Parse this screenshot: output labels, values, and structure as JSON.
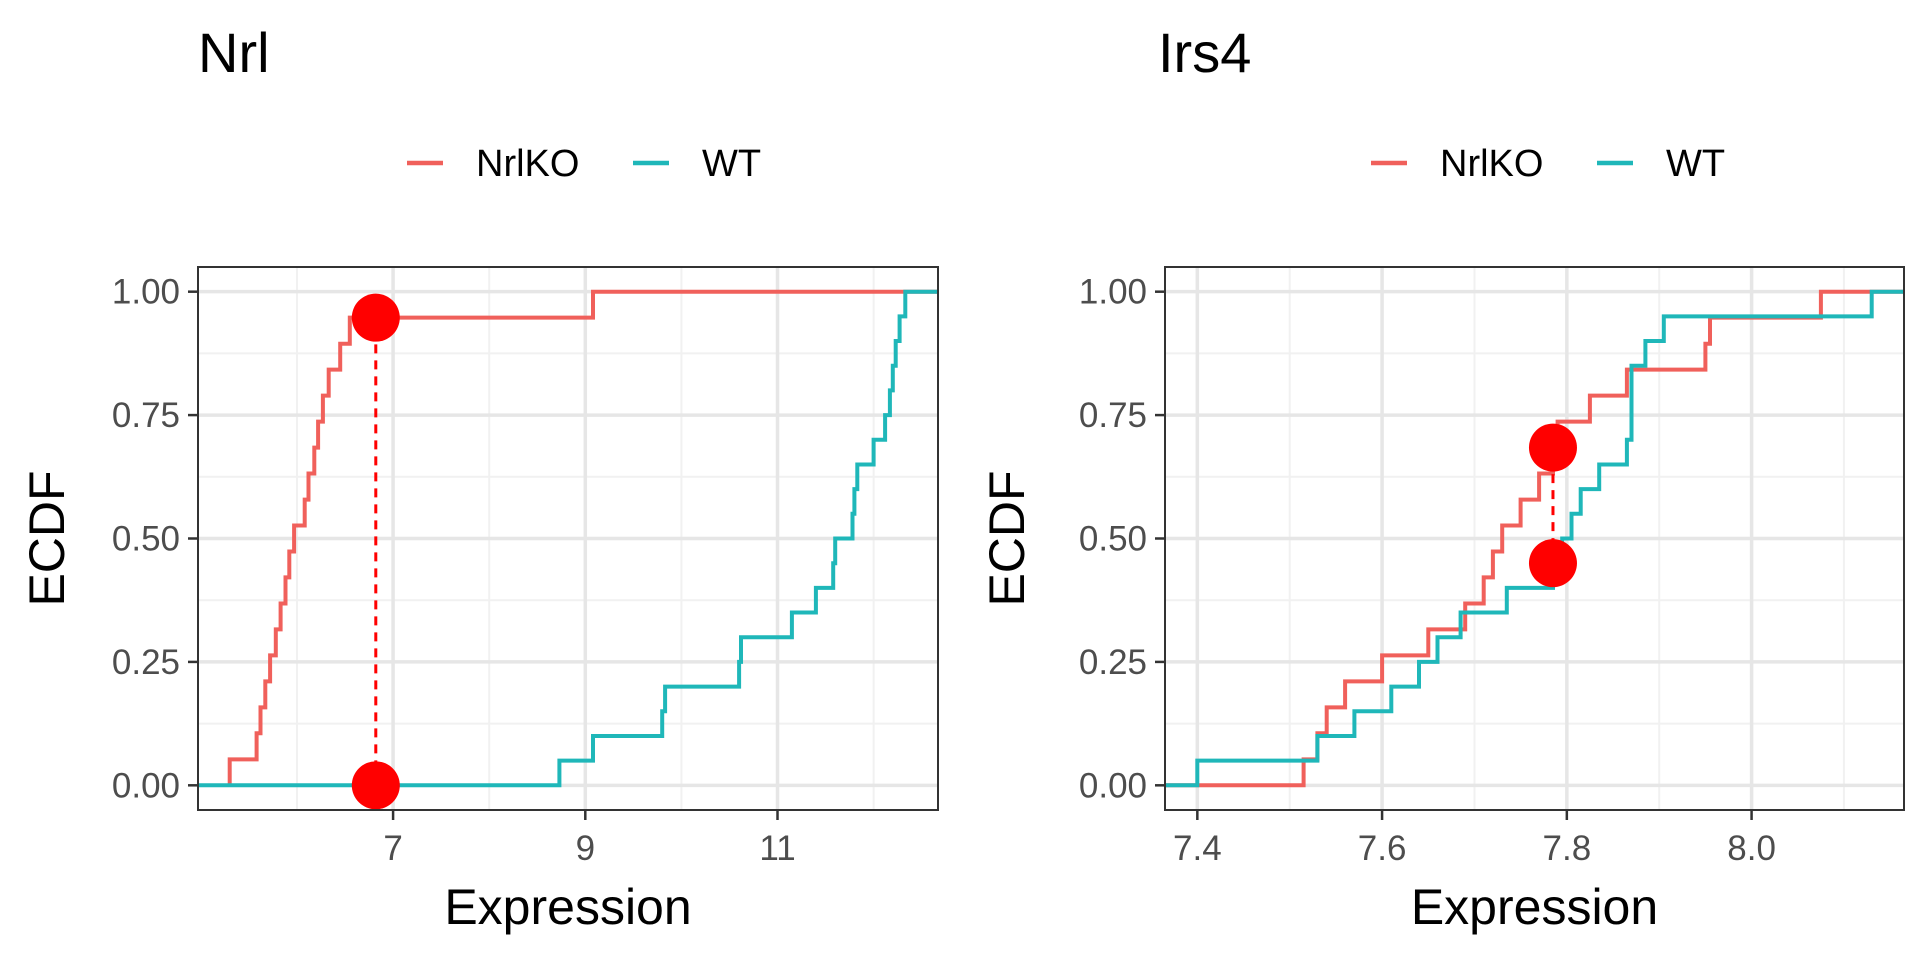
{
  "colors": {
    "NrlKO": "#F0605B",
    "WT": "#1FB7B9",
    "marker": "#FF0000",
    "grid_major": "#E6E6E6",
    "grid_minor": "#F1F1F1",
    "panel_border": "#333333",
    "axis_text": "#4D4D4D"
  },
  "chart_data": [
    {
      "type": "line",
      "subtype": "ecdf-step",
      "title": "Nrl",
      "xlabel": "Expression",
      "ylabel": "ECDF",
      "legend_position": "top",
      "grid": true,
      "xlim": [
        4.97,
        12.67
      ],
      "ylim": [
        -0.05,
        1.05
      ],
      "x_ticks": [
        7,
        9,
        11
      ],
      "x_minor_ticks": [
        6,
        8,
        10,
        12
      ],
      "y_ticks": [
        0,
        0.25,
        0.5,
        0.75,
        1
      ],
      "y_tick_labels": [
        "0.00",
        "0.25",
        "0.50",
        "0.75",
        "1.00"
      ],
      "series": [
        {
          "name": "NrlKO",
          "points": [
            [
              5.3,
              0
            ],
            [
              5.3,
              0.0526
            ],
            [
              5.58,
              0.1053
            ],
            [
              5.62,
              0.1579
            ],
            [
              5.67,
              0.2105
            ],
            [
              5.72,
              0.2632
            ],
            [
              5.78,
              0.3158
            ],
            [
              5.83,
              0.3684
            ],
            [
              5.88,
              0.4211
            ],
            [
              5.92,
              0.4737
            ],
            [
              5.97,
              0.5263
            ],
            [
              6.08,
              0.5789
            ],
            [
              6.12,
              0.6316
            ],
            [
              6.18,
              0.6842
            ],
            [
              6.22,
              0.7368
            ],
            [
              6.27,
              0.7895
            ],
            [
              6.33,
              0.8421
            ],
            [
              6.45,
              0.8947
            ],
            [
              6.55,
              0.9474
            ],
            [
              9.08,
              1.0
            ],
            [
              12.67,
              1.0
            ]
          ]
        },
        {
          "name": "WT",
          "points": [
            [
              4.97,
              0
            ],
            [
              8.73,
              0.05
            ],
            [
              9.08,
              0.1
            ],
            [
              9.8,
              0.15
            ],
            [
              9.83,
              0.2
            ],
            [
              10.6,
              0.25
            ],
            [
              10.62,
              0.3
            ],
            [
              11.15,
              0.35
            ],
            [
              11.4,
              0.4
            ],
            [
              11.58,
              0.45
            ],
            [
              11.6,
              0.5
            ],
            [
              11.78,
              0.55
            ],
            [
              11.8,
              0.6
            ],
            [
              11.83,
              0.65
            ],
            [
              12.0,
              0.7
            ],
            [
              12.12,
              0.75
            ],
            [
              12.17,
              0.8
            ],
            [
              12.2,
              0.85
            ],
            [
              12.23,
              0.9
            ],
            [
              12.27,
              0.95
            ],
            [
              12.33,
              1.0
            ],
            [
              12.67,
              1.0
            ]
          ]
        }
      ],
      "ks_segment": {
        "x": 6.82,
        "y_low": 0.0,
        "y_high": 0.9474
      }
    },
    {
      "type": "line",
      "subtype": "ecdf-step",
      "title": "Irs4",
      "xlabel": "Expression",
      "ylabel": "ECDF",
      "legend_position": "top",
      "grid": true,
      "xlim": [
        7.365,
        8.165
      ],
      "ylim": [
        -0.05,
        1.05
      ],
      "x_ticks": [
        7.4,
        7.6,
        7.8,
        8.0
      ],
      "x_tick_labels": [
        "7.4",
        "7.6",
        "7.8",
        "8.0"
      ],
      "x_minor_ticks": [
        7.5,
        7.7,
        7.9,
        8.1
      ],
      "y_ticks": [
        0,
        0.25,
        0.5,
        0.75,
        1
      ],
      "y_tick_labels": [
        "0.00",
        "0.25",
        "0.50",
        "0.75",
        "1.00"
      ],
      "series": [
        {
          "name": "NrlKO",
          "points": [
            [
              7.365,
              0
            ],
            [
              7.515,
              0.0526
            ],
            [
              7.53,
              0.1053
            ],
            [
              7.54,
              0.1579
            ],
            [
              7.56,
              0.2105
            ],
            [
              7.6,
              0.2632
            ],
            [
              7.65,
              0.3158
            ],
            [
              7.69,
              0.3684
            ],
            [
              7.71,
              0.4211
            ],
            [
              7.72,
              0.4737
            ],
            [
              7.73,
              0.5263
            ],
            [
              7.75,
              0.5789
            ],
            [
              7.77,
              0.6316
            ],
            [
              7.785,
              0.6842
            ],
            [
              7.79,
              0.7368
            ],
            [
              7.825,
              0.7895
            ],
            [
              7.865,
              0.8421
            ],
            [
              7.95,
              0.8947
            ],
            [
              7.955,
              0.9474
            ],
            [
              8.075,
              1.0
            ],
            [
              8.165,
              1.0
            ]
          ]
        },
        {
          "name": "WT",
          "points": [
            [
              7.365,
              0
            ],
            [
              7.4,
              0.05
            ],
            [
              7.53,
              0.1
            ],
            [
              7.57,
              0.15
            ],
            [
              7.61,
              0.2
            ],
            [
              7.64,
              0.25
            ],
            [
              7.66,
              0.3
            ],
            [
              7.685,
              0.35
            ],
            [
              7.735,
              0.4
            ],
            [
              7.785,
              0.45
            ],
            [
              7.795,
              0.5
            ],
            [
              7.805,
              0.55
            ],
            [
              7.815,
              0.6
            ],
            [
              7.835,
              0.65
            ],
            [
              7.865,
              0.7
            ],
            [
              7.87,
              0.75
            ],
            [
              7.87,
              0.8
            ],
            [
              7.87,
              0.85
            ],
            [
              7.885,
              0.9
            ],
            [
              7.905,
              0.95
            ],
            [
              8.13,
              1.0
            ],
            [
              8.165,
              1.0
            ]
          ]
        }
      ],
      "ks_segment": {
        "x": 7.785,
        "y_low": 0.45,
        "y_high": 0.6842
      }
    }
  ]
}
